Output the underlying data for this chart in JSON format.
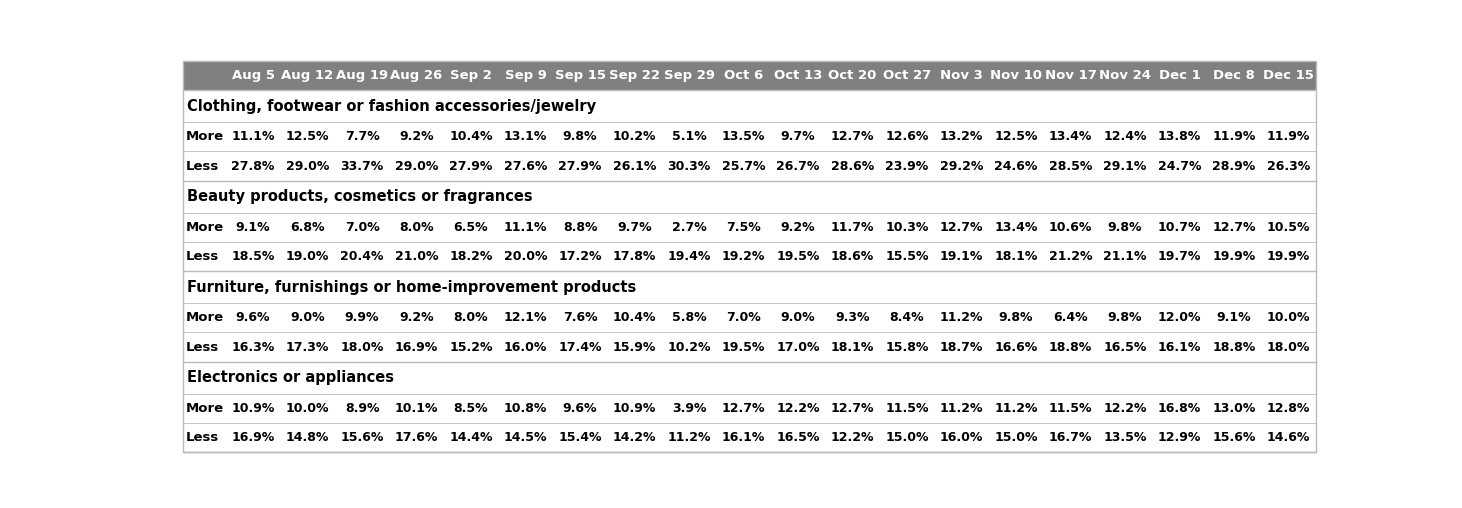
{
  "columns": [
    "Aug 5",
    "Aug 12",
    "Aug 19",
    "Aug 26",
    "Sep 2",
    "Sep 9",
    "Sep 15",
    "Sep 22",
    "Sep 29",
    "Oct 6",
    "Oct 13",
    "Oct 20",
    "Oct 27",
    "Nov 3",
    "Nov 10",
    "Nov 17",
    "Nov 24",
    "Dec 1",
    "Dec 8",
    "Dec 15"
  ],
  "sections": [
    {
      "title": "Clothing, footwear or fashion accessories/jewelry",
      "rows": [
        {
          "label": "More",
          "values": [
            "11.1%",
            "12.5%",
            "7.7%",
            "9.2%",
            "10.4%",
            "13.1%",
            "9.8%",
            "10.2%",
            "5.1%",
            "13.5%",
            "9.7%",
            "12.7%",
            "12.6%",
            "13.2%",
            "12.5%",
            "13.4%",
            "12.4%",
            "13.8%",
            "11.9%",
            "11.9%"
          ]
        },
        {
          "label": "Less",
          "values": [
            "27.8%",
            "29.0%",
            "33.7%",
            "29.0%",
            "27.9%",
            "27.6%",
            "27.9%",
            "26.1%",
            "30.3%",
            "25.7%",
            "26.7%",
            "28.6%",
            "23.9%",
            "29.2%",
            "24.6%",
            "28.5%",
            "29.1%",
            "24.7%",
            "28.9%",
            "26.3%"
          ]
        }
      ]
    },
    {
      "title": "Beauty products, cosmetics or fragrances",
      "rows": [
        {
          "label": "More",
          "values": [
            "9.1%",
            "6.8%",
            "7.0%",
            "8.0%",
            "6.5%",
            "11.1%",
            "8.8%",
            "9.7%",
            "2.7%",
            "7.5%",
            "9.2%",
            "11.7%",
            "10.3%",
            "12.7%",
            "13.4%",
            "10.6%",
            "9.8%",
            "10.7%",
            "12.7%",
            "10.5%"
          ]
        },
        {
          "label": "Less",
          "values": [
            "18.5%",
            "19.0%",
            "20.4%",
            "21.0%",
            "18.2%",
            "20.0%",
            "17.2%",
            "17.8%",
            "19.4%",
            "19.2%",
            "19.5%",
            "18.6%",
            "15.5%",
            "19.1%",
            "18.1%",
            "21.2%",
            "21.1%",
            "19.7%",
            "19.9%",
            "19.9%"
          ]
        }
      ]
    },
    {
      "title": "Furniture, furnishings or home-improvement products",
      "rows": [
        {
          "label": "More",
          "values": [
            "9.6%",
            "9.0%",
            "9.9%",
            "9.2%",
            "8.0%",
            "12.1%",
            "7.6%",
            "10.4%",
            "5.8%",
            "7.0%",
            "9.0%",
            "9.3%",
            "8.4%",
            "11.2%",
            "9.8%",
            "6.4%",
            "9.8%",
            "12.0%",
            "9.1%",
            "10.0%"
          ]
        },
        {
          "label": "Less",
          "values": [
            "16.3%",
            "17.3%",
            "18.0%",
            "16.9%",
            "15.2%",
            "16.0%",
            "17.4%",
            "15.9%",
            "10.2%",
            "19.5%",
            "17.0%",
            "18.1%",
            "15.8%",
            "18.7%",
            "16.6%",
            "18.8%",
            "16.5%",
            "16.1%",
            "18.8%",
            "18.0%"
          ]
        }
      ]
    },
    {
      "title": "Electronics or appliances",
      "rows": [
        {
          "label": "More",
          "values": [
            "10.9%",
            "10.0%",
            "8.9%",
            "10.1%",
            "8.5%",
            "10.8%",
            "9.6%",
            "10.9%",
            "3.9%",
            "12.7%",
            "12.2%",
            "12.7%",
            "11.5%",
            "11.2%",
            "11.2%",
            "11.5%",
            "12.2%",
            "16.8%",
            "13.0%",
            "12.8%"
          ]
        },
        {
          "label": "Less",
          "values": [
            "16.9%",
            "14.8%",
            "15.6%",
            "17.6%",
            "14.4%",
            "14.5%",
            "15.4%",
            "14.2%",
            "11.2%",
            "16.1%",
            "16.5%",
            "12.2%",
            "15.0%",
            "16.0%",
            "15.0%",
            "16.7%",
            "13.5%",
            "12.9%",
            "15.6%",
            "14.6%"
          ]
        }
      ]
    }
  ],
  "header_bg": "#808080",
  "header_fg": "#ffffff",
  "section_title_fg": "#000000",
  "cell_fg": "#000000",
  "row_label_fg": "#000000",
  "bg_white": "#ffffff",
  "border_color": "#bbbbbb",
  "header_font_size": 9.5,
  "section_font_size": 10.5,
  "cell_font_size": 9.0,
  "row_label_font_size": 9.5,
  "fig_width": 14.62,
  "fig_height": 5.08,
  "dpi": 100
}
